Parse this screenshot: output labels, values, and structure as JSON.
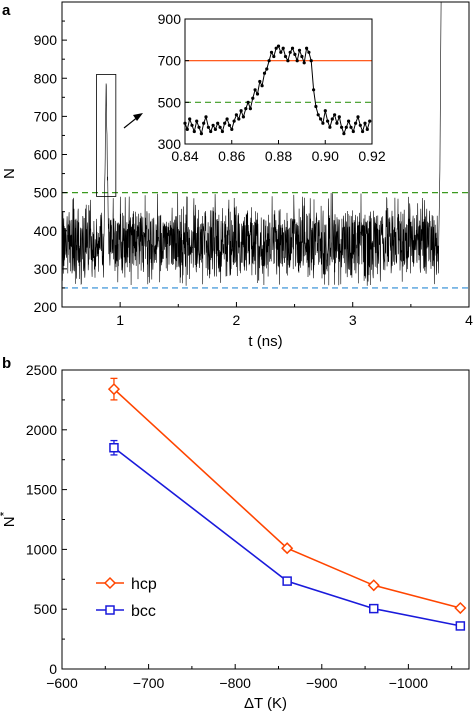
{
  "chart_data": [
    {
      "panel_label": "a",
      "type": "line",
      "title": "",
      "xlabel": "t (ns)",
      "ylabel": "N",
      "xlim": [
        0.5,
        4.0
      ],
      "ylim": [
        200,
        1000
      ],
      "xticks": [
        1,
        2,
        3,
        4
      ],
      "yticks": [
        200,
        300,
        400,
        500,
        600,
        700,
        800,
        900
      ],
      "grid": false,
      "series": [
        {
          "description": "fluctuating trace",
          "color": "#000000",
          "baseline_mean": 370,
          "baseline_range": [
            270,
            480
          ],
          "spike_at_t": 0.88,
          "spike_peak": 780,
          "final_rise_at_t": 3.74,
          "final_rise_to": 1000
        }
      ],
      "reference_lines": [
        {
          "y": 500,
          "color": "#3a9a1e",
          "style": "dashed"
        },
        {
          "y": 250,
          "color": "#2a8ad4",
          "style": "dashed"
        }
      ],
      "highlight_box_t": [
        0.84,
        0.92
      ],
      "inset": {
        "xlim": [
          0.84,
          0.92
        ],
        "ylim": [
          300,
          900
        ],
        "xticks": [
          "0.84",
          "0.86",
          "0.88",
          "0.90",
          "0.92"
        ],
        "yticks": [
          300,
          500,
          700,
          900
        ],
        "reference_lines": [
          {
            "y": 700,
            "color": "#ff4500",
            "style": "solid"
          },
          {
            "y": 500,
            "color": "#3a9a1e",
            "style": "dashed"
          }
        ],
        "points": [
          [
            0.84,
            400
          ],
          [
            0.841,
            370
          ],
          [
            0.842,
            420
          ],
          [
            0.843,
            390
          ],
          [
            0.844,
            360
          ],
          [
            0.845,
            410
          ],
          [
            0.846,
            380
          ],
          [
            0.847,
            350
          ],
          [
            0.848,
            400
          ],
          [
            0.849,
            430
          ],
          [
            0.85,
            380
          ],
          [
            0.851,
            360
          ],
          [
            0.852,
            390
          ],
          [
            0.853,
            370
          ],
          [
            0.854,
            400
          ],
          [
            0.855,
            380
          ],
          [
            0.856,
            360
          ],
          [
            0.857,
            400
          ],
          [
            0.858,
            420
          ],
          [
            0.859,
            390
          ],
          [
            0.86,
            370
          ],
          [
            0.861,
            410
          ],
          [
            0.862,
            440
          ],
          [
            0.863,
            420
          ],
          [
            0.864,
            460
          ],
          [
            0.865,
            430
          ],
          [
            0.866,
            470
          ],
          [
            0.867,
            500
          ],
          [
            0.868,
            470
          ],
          [
            0.869,
            520
          ],
          [
            0.87,
            560
          ],
          [
            0.871,
            540
          ],
          [
            0.872,
            600
          ],
          [
            0.873,
            580
          ],
          [
            0.874,
            640
          ],
          [
            0.875,
            660
          ],
          [
            0.876,
            700
          ],
          [
            0.877,
            740
          ],
          [
            0.878,
            720
          ],
          [
            0.879,
            760
          ],
          [
            0.88,
            770
          ],
          [
            0.881,
            740
          ],
          [
            0.882,
            760
          ],
          [
            0.883,
            720
          ],
          [
            0.884,
            700
          ],
          [
            0.885,
            740
          ],
          [
            0.886,
            760
          ],
          [
            0.887,
            730
          ],
          [
            0.888,
            700
          ],
          [
            0.889,
            750
          ],
          [
            0.89,
            720
          ],
          [
            0.891,
            690
          ],
          [
            0.892,
            760
          ],
          [
            0.893,
            740
          ],
          [
            0.894,
            700
          ],
          [
            0.895,
            560
          ],
          [
            0.896,
            480
          ],
          [
            0.897,
            440
          ],
          [
            0.898,
            420
          ],
          [
            0.899,
            400
          ],
          [
            0.9,
            460
          ],
          [
            0.901,
            410
          ],
          [
            0.902,
            380
          ],
          [
            0.903,
            420
          ],
          [
            0.904,
            440
          ],
          [
            0.905,
            400
          ],
          [
            0.906,
            430
          ],
          [
            0.907,
            380
          ],
          [
            0.908,
            350
          ],
          [
            0.909,
            380
          ],
          [
            0.91,
            410
          ],
          [
            0.911,
            380
          ],
          [
            0.912,
            360
          ],
          [
            0.913,
            400
          ],
          [
            0.914,
            430
          ],
          [
            0.915,
            390
          ],
          [
            0.916,
            360
          ],
          [
            0.917,
            400
          ],
          [
            0.918,
            370
          ],
          [
            0.919,
            410
          ]
        ]
      }
    },
    {
      "panel_label": "b",
      "type": "line",
      "title": "",
      "xlabel": "ΔT (K)",
      "ylabel": "N*",
      "x_axis_reversed": true,
      "xlim": [
        -600,
        -1070
      ],
      "ylim": [
        0,
        2500
      ],
      "xticks": [
        "−600",
        "−700",
        "−800",
        "−900",
        "−1000"
      ],
      "xtick_values": [
        -600,
        -700,
        -800,
        -900,
        -1000
      ],
      "yticks": [
        0,
        500,
        1000,
        1500,
        2000,
        2500
      ],
      "grid": false,
      "legend_position": "bottom-left",
      "series": [
        {
          "name": "hcp",
          "color": "#ff4500",
          "marker": "diamond",
          "x": [
            -660,
            -860,
            -960,
            -1060
          ],
          "values": [
            2340,
            1010,
            700,
            510
          ],
          "errors": [
            90,
            20,
            15,
            15
          ]
        },
        {
          "name": "bcc",
          "color": "#1a1adb",
          "marker": "square",
          "x": [
            -660,
            -860,
            -960,
            -1060
          ],
          "values": [
            1850,
            735,
            505,
            360
          ],
          "errors": [
            60,
            20,
            15,
            15
          ]
        }
      ]
    }
  ]
}
